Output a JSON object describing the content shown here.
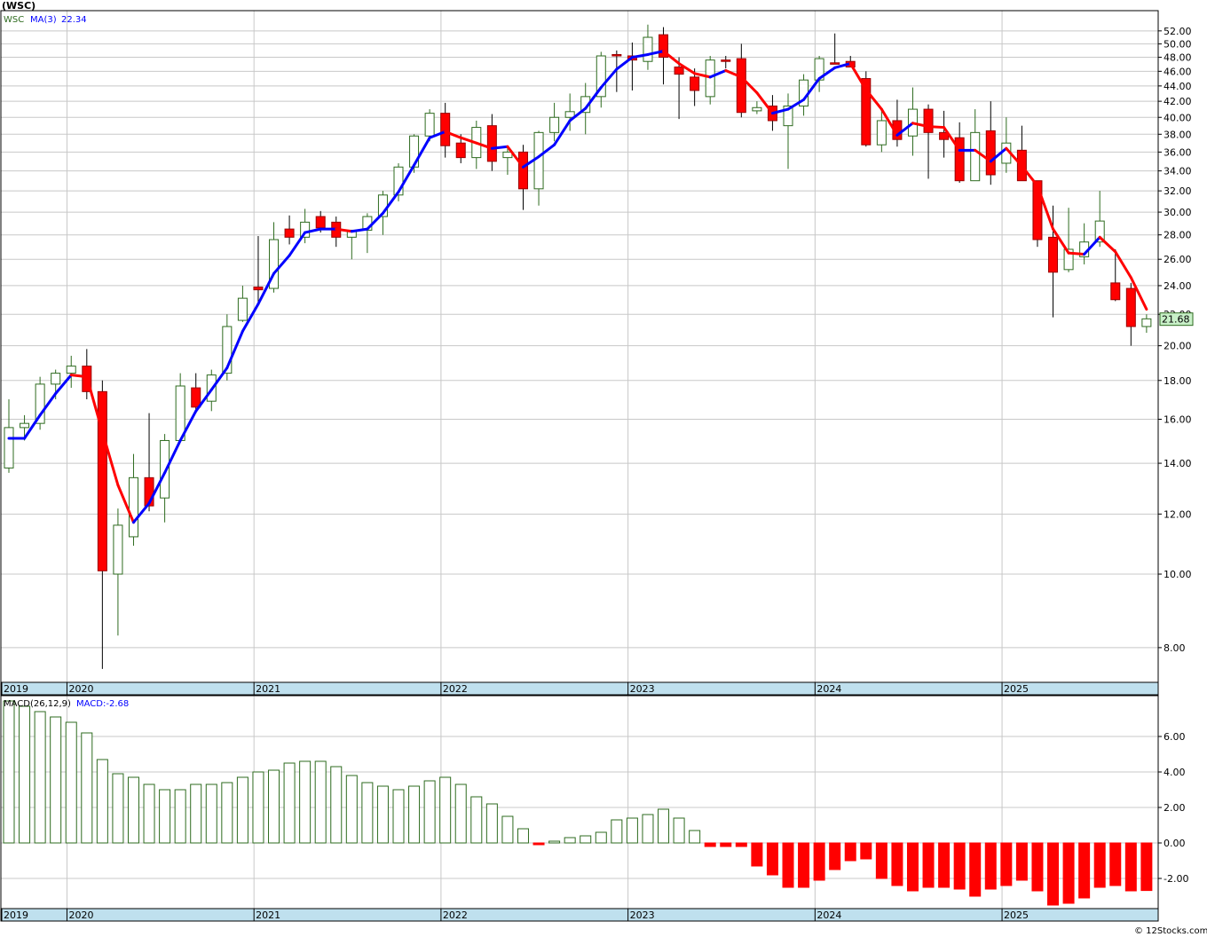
{
  "header": {
    "title": "(WSC)"
  },
  "price_legend": {
    "symbol": "WSC",
    "ma_label": "MA(3)",
    "ma_value": "22.34"
  },
  "macd_legend": {
    "label": "MACD(26,12,9)",
    "value_label": "MACD:-2.68"
  },
  "last_price_label": "21.68",
  "footer_credit": "© 12Stocks.com",
  "colors": {
    "up": "#2e6b1f",
    "down": "#ff0000",
    "ma_up": "#0000ff",
    "ma_down": "#ff0000",
    "axis_band": "#bfe0ee",
    "last_price_bg": "#c8f0c8",
    "grid": "#c8c8c8"
  },
  "chart_data": [
    {
      "type": "candlestick",
      "title": "(WSC)",
      "scale": "log",
      "ylim": [
        7.2,
        55
      ],
      "yticks": [
        8,
        10,
        12,
        14,
        16,
        18,
        20,
        22,
        24,
        26,
        28,
        30,
        32,
        34,
        36,
        38,
        40,
        42,
        44,
        46,
        48,
        50,
        52
      ],
      "ytick_labels": [
        "8.00",
        "10.00",
        "12.00",
        "14.00",
        "16.00",
        "18.00",
        "20.00",
        "22.00",
        "24.00",
        "26.00",
        "28.00",
        "30.00",
        "32.00",
        "34.00",
        "36.00",
        "38.00",
        "40.00",
        "42.00",
        "44.00",
        "46.00",
        "48.00",
        "50.00",
        "52.00"
      ],
      "x_year_labels": [
        "2019",
        "2020",
        "2021",
        "2022",
        "2023",
        "2024",
        "2025"
      ],
      "x_year_label_month_index": [
        0,
        4,
        16,
        28,
        40,
        52,
        64
      ],
      "period": "monthly",
      "series": [
        {
          "name": "WSC",
          "ohlc": [
            [
              13.8,
              17.0,
              13.6,
              15.6
            ],
            [
              15.6,
              16.2,
              15.0,
              15.8
            ],
            [
              15.8,
              18.2,
              15.5,
              17.8
            ],
            [
              17.8,
              18.6,
              17.0,
              18.4
            ],
            [
              18.4,
              19.4,
              17.6,
              18.8
            ],
            [
              18.8,
              19.8,
              17.0,
              17.4
            ],
            [
              17.4,
              18.0,
              7.5,
              10.1
            ],
            [
              10.0,
              12.2,
              8.3,
              11.6
            ],
            [
              11.2,
              14.4,
              10.9,
              13.4
            ],
            [
              13.4,
              16.3,
              12.1,
              12.3
            ],
            [
              12.6,
              15.3,
              11.7,
              15.0
            ],
            [
              15.0,
              18.4,
              15.0,
              17.7
            ],
            [
              17.6,
              18.4,
              16.3,
              16.6
            ],
            [
              16.9,
              18.6,
              16.4,
              18.3
            ],
            [
              18.4,
              22.0,
              18.0,
              21.2
            ],
            [
              21.6,
              24.0,
              21.5,
              23.1
            ],
            [
              23.9,
              27.9,
              22.6,
              23.7
            ],
            [
              23.8,
              29.1,
              23.5,
              27.6
            ],
            [
              28.5,
              29.7,
              27.2,
              27.8
            ],
            [
              27.8,
              30.3,
              27.3,
              29.1
            ],
            [
              29.6,
              30.1,
              28.2,
              28.6
            ],
            [
              29.1,
              29.6,
              27.0,
              27.8
            ],
            [
              27.8,
              28.4,
              26.0,
              28.4
            ],
            [
              28.4,
              29.9,
              26.5,
              29.6
            ],
            [
              29.6,
              32.0,
              28.0,
              31.6
            ],
            [
              31.6,
              34.8,
              31.0,
              34.4
            ],
            [
              34.4,
              38.0,
              33.8,
              37.8
            ],
            [
              37.8,
              41.0,
              37.2,
              40.5
            ],
            [
              40.5,
              41.8,
              35.4,
              36.7
            ],
            [
              37.0,
              38.0,
              34.8,
              35.4
            ],
            [
              35.4,
              39.6,
              34.2,
              38.8
            ],
            [
              39.0,
              40.4,
              34.0,
              35.0
            ],
            [
              35.4,
              36.6,
              33.6,
              36.0
            ],
            [
              36.0,
              36.8,
              30.2,
              32.2
            ],
            [
              32.2,
              38.4,
              30.6,
              38.2
            ],
            [
              38.2,
              41.8,
              37.2,
              40.0
            ],
            [
              40.0,
              43.0,
              38.4,
              40.7
            ],
            [
              40.6,
              44.4,
              38.0,
              42.6
            ],
            [
              42.6,
              48.8,
              41.2,
              48.2
            ],
            [
              48.4,
              49.0,
              43.2,
              48.2
            ],
            [
              48.2,
              50.2,
              43.4,
              47.6
            ],
            [
              47.4,
              53.0,
              46.2,
              51.0
            ],
            [
              51.4,
              52.6,
              44.2,
              48.0
            ],
            [
              46.6,
              48.0,
              39.8,
              45.6
            ],
            [
              45.2,
              46.4,
              41.4,
              43.4
            ],
            [
              42.6,
              48.2,
              41.6,
              47.6
            ],
            [
              47.6,
              48.2,
              46.4,
              47.4
            ],
            [
              47.8,
              50.0,
              40.0,
              40.6
            ],
            [
              40.8,
              42.0,
              40.4,
              41.2
            ],
            [
              41.4,
              42.8,
              38.4,
              39.6
            ],
            [
              39.0,
              43.0,
              34.2,
              41.4
            ],
            [
              41.4,
              45.6,
              40.2,
              44.8
            ],
            [
              44.8,
              48.2,
              43.2,
              47.8
            ],
            [
              47.2,
              51.6,
              47.0,
              47.0
            ],
            [
              47.4,
              48.2,
              46.6,
              46.6
            ],
            [
              45.0,
              46.0,
              36.6,
              36.8
            ],
            [
              36.8,
              41.0,
              36.0,
              39.6
            ],
            [
              39.6,
              42.2,
              36.6,
              37.4
            ],
            [
              37.8,
              43.8,
              35.6,
              41.0
            ],
            [
              41.0,
              41.6,
              33.2,
              38.2
            ],
            [
              38.2,
              40.8,
              35.4,
              37.4
            ],
            [
              37.6,
              39.4,
              32.8,
              33.0
            ],
            [
              33.0,
              41.0,
              33.0,
              38.2
            ],
            [
              38.4,
              42.0,
              32.6,
              33.6
            ],
            [
              34.8,
              40.0,
              33.8,
              37.0
            ],
            [
              36.2,
              39.0,
              33.0,
              33.0
            ],
            [
              33.0,
              33.0,
              27.0,
              27.6
            ],
            [
              27.8,
              30.6,
              21.8,
              25.0
            ],
            [
              25.2,
              30.4,
              25.0,
              26.8
            ],
            [
              26.2,
              29.0,
              25.6,
              27.4
            ],
            [
              27.4,
              32.0,
              27.0,
              29.2
            ],
            [
              24.2,
              26.8,
              22.9,
              23.0
            ],
            [
              23.8,
              24.2,
              20.0,
              21.2
            ],
            [
              21.2,
              22.0,
              20.8,
              21.7
            ]
          ]
        },
        {
          "name": "MA(3)",
          "values": [
            15.1,
            15.1,
            16.2,
            17.3,
            18.3,
            18.2,
            15.4,
            13.1,
            11.7,
            12.4,
            13.6,
            15.0,
            16.4,
            17.5,
            18.7,
            20.9,
            22.7,
            24.9,
            26.3,
            28.2,
            28.5,
            28.5,
            28.3,
            28.5,
            29.9,
            31.9,
            34.6,
            37.6,
            38.3,
            37.6,
            37.0,
            36.4,
            36.6,
            34.4,
            35.5,
            36.8,
            39.6,
            41.1,
            43.8,
            46.3,
            48.0,
            48.4,
            48.9,
            47.1,
            45.7,
            45.2,
            46.1,
            45.2,
            43.1,
            40.5,
            41.0,
            42.2,
            45.0,
            46.5,
            47.1,
            43.5,
            41.0,
            37.9,
            39.3,
            38.9,
            38.8,
            36.2,
            36.2,
            35.0,
            36.4,
            34.5,
            32.5,
            28.5,
            26.5,
            26.4,
            27.8,
            26.6,
            24.6,
            22.34
          ]
        }
      ],
      "last_price": 21.68
    },
    {
      "type": "bar",
      "title": "MACD(26,12,9)",
      "ylim": [
        -3.6,
        8.2
      ],
      "yticks": [
        -2,
        0,
        2,
        4,
        6
      ],
      "ytick_labels": [
        "-2.00",
        "0.00",
        "2.00",
        "4.00",
        "6.00"
      ],
      "x_year_labels": [
        "2019",
        "2020",
        "2021",
        "2022",
        "2023",
        "2024",
        "2025"
      ],
      "series": [
        {
          "name": "MACD",
          "values": [
            8.0,
            7.7,
            7.4,
            7.1,
            6.8,
            6.2,
            4.7,
            3.9,
            3.7,
            3.3,
            3.0,
            3.0,
            3.3,
            3.3,
            3.4,
            3.7,
            4.0,
            4.1,
            4.5,
            4.6,
            4.6,
            4.3,
            3.8,
            3.4,
            3.2,
            3.0,
            3.2,
            3.5,
            3.7,
            3.3,
            2.6,
            2.2,
            1.5,
            0.8,
            -0.1,
            0.1,
            0.3,
            0.4,
            0.6,
            1.3,
            1.4,
            1.6,
            1.9,
            1.4,
            0.7,
            -0.2,
            -0.2,
            -0.2,
            -1.3,
            -1.8,
            -2.5,
            -2.5,
            -2.1,
            -1.5,
            -1.0,
            -0.9,
            -2.0,
            -2.4,
            -2.7,
            -2.5,
            -2.5,
            -2.6,
            -3.0,
            -2.6,
            -2.4,
            -2.1,
            -2.7,
            -3.5,
            -3.4,
            -3.1,
            -2.5,
            -2.4,
            -2.7,
            -2.68
          ]
        }
      ]
    }
  ]
}
